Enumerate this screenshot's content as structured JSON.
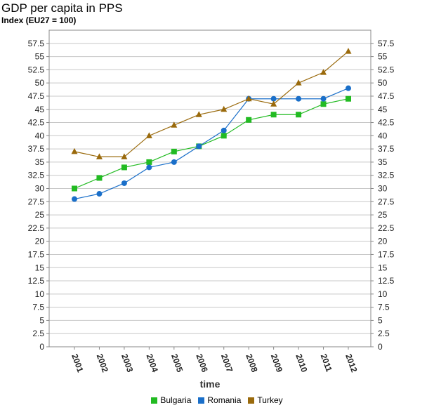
{
  "header": {
    "title": "GDP per capita in PPS",
    "subtitle": "Index (EU27 = 100)"
  },
  "chart_data": {
    "type": "line",
    "title": "GDP per capita in PPS",
    "subtitle": "Index (EU27 = 100)",
    "xlabel": "time",
    "ylabel": "",
    "categories": [
      "2001",
      "2002",
      "2003",
      "2004",
      "2005",
      "2006",
      "2007",
      "2008",
      "2009",
      "2010",
      "2011",
      "2012"
    ],
    "ylim": [
      0,
      60
    ],
    "yticks": [
      "0",
      "2.5",
      "5",
      "7.5",
      "10",
      "12.5",
      "15",
      "17.5",
      "20",
      "22.5",
      "25",
      "27.5",
      "30",
      "32.5",
      "35",
      "37.5",
      "40",
      "42.5",
      "45",
      "47.5",
      "50",
      "52.5",
      "55",
      "57.5"
    ],
    "grid": true,
    "legend_position": "bottom",
    "series": [
      {
        "name": "Bulgaria",
        "color": "#22bb22",
        "marker": "square",
        "values": [
          30,
          32,
          34,
          35,
          37,
          38,
          40,
          43,
          44,
          44,
          46,
          47
        ]
      },
      {
        "name": "Romania",
        "color": "#1a6fc9",
        "marker": "circle",
        "values": [
          28,
          29,
          31,
          34,
          35,
          38,
          41,
          47,
          47,
          47,
          47,
          49
        ]
      },
      {
        "name": "Turkey",
        "color": "#9a6a0c",
        "marker": "triangle",
        "values": [
          37,
          36,
          36,
          40,
          42,
          44,
          45,
          47,
          46,
          50,
          52,
          56
        ]
      }
    ]
  }
}
